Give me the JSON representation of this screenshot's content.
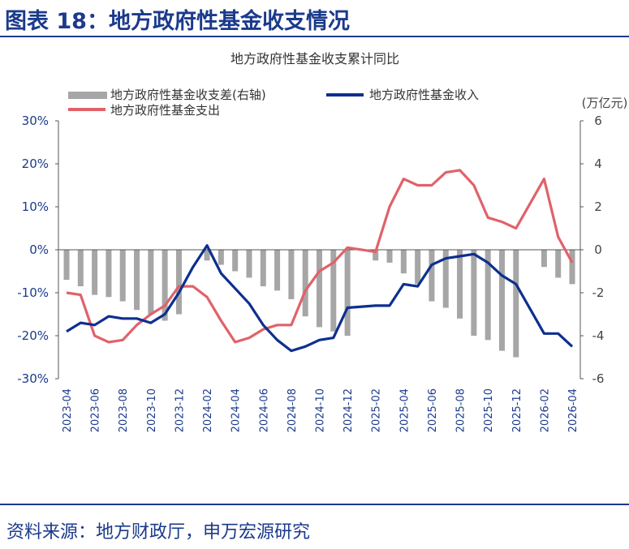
{
  "figure_title": "图表 18：地方政府性基金收支情况",
  "source_note": "资料来源：地方财政厅，申万宏源研究",
  "colors": {
    "title": "#1b3a8c",
    "axis_text": "#1b3a8c",
    "income_line": "#0d2f8f",
    "expenditure_line": "#e0626a",
    "gap_bar": "#a6a6a6",
    "right_axis_text": "#444444"
  },
  "chart_data": {
    "type": "bar+line",
    "title": "地方政府性基金收支累计同比",
    "right_axis_unit": "(万亿元)",
    "left_axis": {
      "ylim": [
        -30,
        30
      ],
      "ticks": [
        "30%",
        "20%",
        "10%",
        "0%",
        "-10%",
        "-20%",
        "-30%"
      ]
    },
    "right_axis": {
      "ylim": [
        -6,
        6
      ],
      "ticks": [
        "6",
        "4",
        "2",
        "0",
        "-2",
        "-4",
        "-6"
      ]
    },
    "x_tick_labels": [
      "2023-04",
      "2023-06",
      "2023-08",
      "2023-10",
      "2023-12",
      "2024-02",
      "2024-04",
      "2024-06",
      "2024-08",
      "2024-10",
      "2024-12",
      "2025-02",
      "2025-04",
      "2025-06",
      "2025-08",
      "2025-10",
      "2025-12",
      "2026-02",
      "2026-04"
    ],
    "legend_placement": "top",
    "x": [
      "2023-04",
      "2023-05",
      "2023-06",
      "2023-07",
      "2023-08",
      "2023-09",
      "2023-10",
      "2023-11",
      "2023-12",
      "2024-01",
      "2024-02",
      "2024-03",
      "2024-04",
      "2024-05",
      "2024-06",
      "2024-07",
      "2024-08",
      "2024-09",
      "2024-10",
      "2024-11",
      "2024-12",
      "2025-01",
      "2025-02",
      "2025-03",
      "2025-04",
      "2025-05",
      "2025-06",
      "2025-07",
      "2025-08",
      "2025-09",
      "2025-10",
      "2025-11",
      "2025-12",
      "2026-01",
      "2026-02",
      "2026-03",
      "2026-04"
    ],
    "series": [
      {
        "name": "地方政府性基金收支差(右轴)",
        "type": "bar",
        "axis": "right",
        "values": [
          -1.4,
          -1.7,
          -2.1,
          -2.2,
          -2.4,
          -2.8,
          -3.0,
          -3.3,
          -3.0,
          null,
          -0.5,
          -0.7,
          -1.0,
          -1.3,
          -1.7,
          -1.9,
          -2.3,
          -3.1,
          -3.6,
          -3.8,
          -4.0,
          null,
          -0.5,
          -0.6,
          -1.1,
          -1.6,
          -2.4,
          -2.7,
          -3.2,
          -4.0,
          -4.2,
          -4.7,
          -5.0,
          null,
          -0.8,
          -1.3,
          -1.6
        ]
      },
      {
        "name": "地方政府性基金收入",
        "type": "line",
        "axis": "left",
        "values": [
          -19,
          -17,
          -17.5,
          -15.5,
          -16,
          -16,
          -17,
          -15,
          -10,
          -4,
          1,
          -5.5,
          -9,
          -12.5,
          -17.5,
          -21,
          -23.5,
          -22.5,
          -21,
          -20.5,
          -13.5,
          null,
          -13,
          -13,
          -8,
          -8.5,
          -3.5,
          -2,
          -1.5,
          -1,
          -3,
          -6,
          -8,
          null,
          -19.5,
          -19.5,
          -22.5
        ]
      },
      {
        "name": "地方政府性基金支出",
        "type": "line",
        "axis": "left",
        "values": [
          -10,
          -10.5,
          -20,
          -21.5,
          -21,
          -17.5,
          -15,
          -13,
          -8.5,
          -8.5,
          -11,
          -16.5,
          -21.5,
          -20.5,
          -18.5,
          -17.5,
          -17.5,
          -9.5,
          -5,
          -3,
          0.5,
          null,
          -0.5,
          10,
          16.5,
          15,
          15,
          18,
          18.5,
          15,
          7.5,
          6.5,
          5,
          null,
          16.5,
          3,
          -3
        ]
      }
    ]
  }
}
